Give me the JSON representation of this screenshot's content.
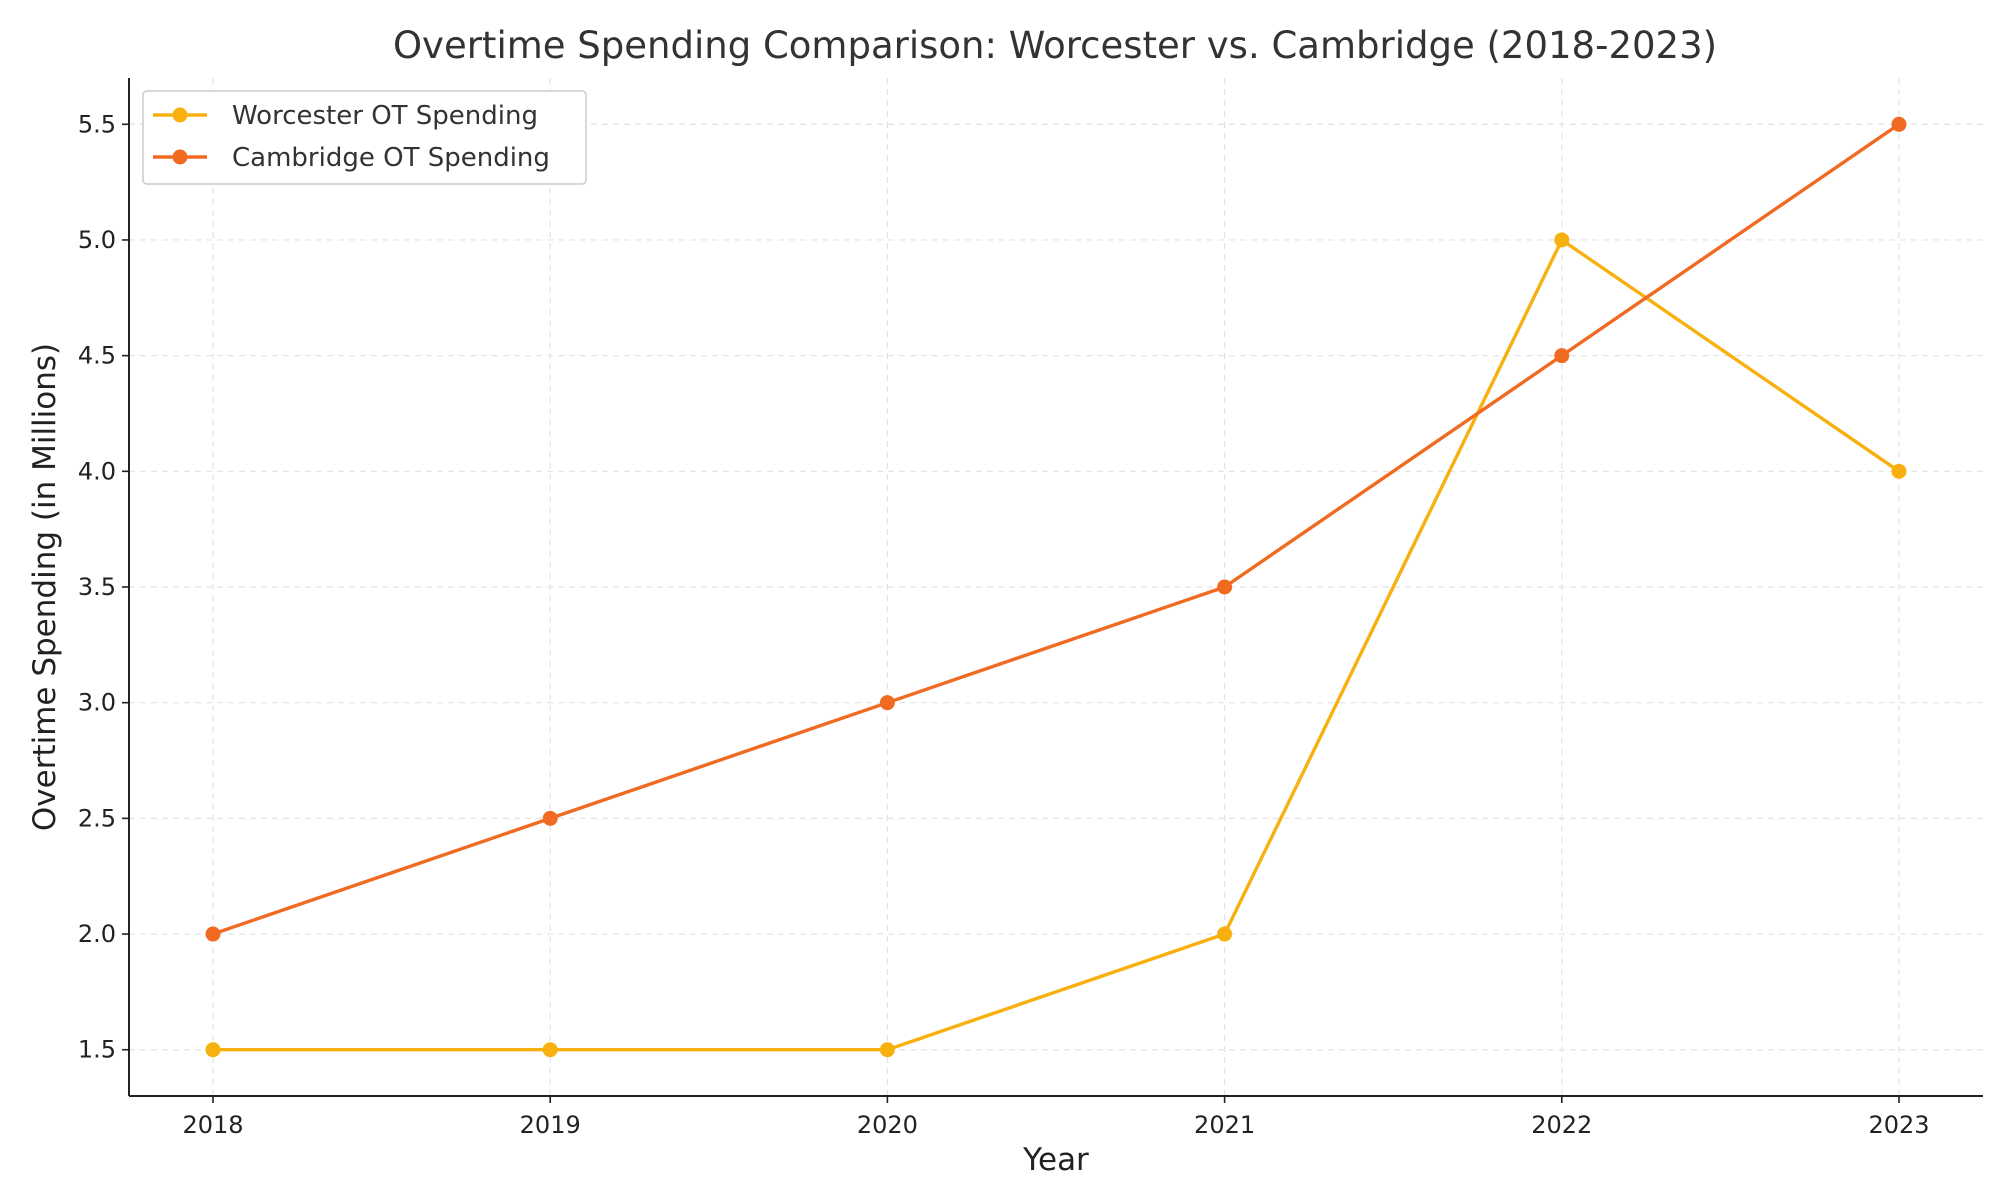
{
  "chart_data": {
    "type": "line",
    "title": "Overtime Spending Comparison: Worcester vs. Cambridge (2018-2023)",
    "xlabel": "Year",
    "ylabel": "Overtime Spending (in Millions)",
    "x": [
      "2018",
      "2019",
      "2020",
      "2021",
      "2022",
      "2023"
    ],
    "ylim": [
      1.3,
      5.7
    ],
    "yticks": [
      "1.5",
      "2.0",
      "2.5",
      "3.0",
      "3.5",
      "4.0",
      "4.5",
      "5.0",
      "5.5"
    ],
    "grid": true,
    "legend_position": "top-left",
    "series": [
      {
        "name": "Worcester OT Spending",
        "color": "#f8b00e",
        "values": [
          1.5,
          1.5,
          1.5,
          2.0,
          5.0,
          4.0
        ]
      },
      {
        "name": "Cambridge OT Spending",
        "color": "#f06a22",
        "values": [
          2.0,
          2.5,
          3.0,
          3.5,
          4.5,
          5.5
        ]
      }
    ]
  }
}
